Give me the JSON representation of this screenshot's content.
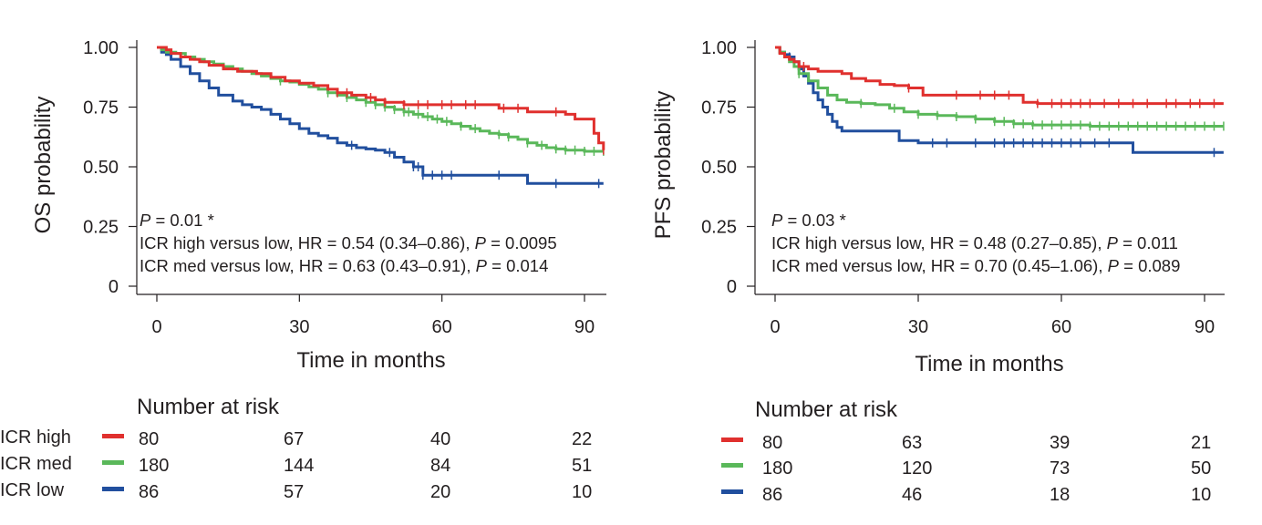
{
  "chart_data": [
    {
      "type": "line",
      "subtype": "kaplan-meier",
      "ylabel": "OS probability",
      "xlabel": "Time in months",
      "xlim": [
        -8,
        95
      ],
      "ylim": [
        0,
        1.05
      ],
      "xticks": [
        "0",
        "30",
        "60",
        "90"
      ],
      "xtick_values": [
        0,
        30,
        60,
        90
      ],
      "yticks": [
        "0",
        "0.25",
        "0.50",
        "0.75",
        "1.00"
      ],
      "ytick_values": [
        0,
        0.25,
        0.5,
        0.75,
        1.0
      ],
      "annotation": {
        "p_label": "P",
        "p_text": " = 0.01 *",
        "lines": [
          {
            "pre": "ICR high versus low, HR = 0.54 (0.34–0.86), ",
            "p": "P",
            "post": " = 0.0095"
          },
          {
            "pre": "ICR med versus low,  HR = 0.63 (0.43–0.91), ",
            "p": "P",
            "post": " = 0.014"
          }
        ]
      },
      "series": [
        {
          "name": "ICR high",
          "color": "#e0302e",
          "x": [
            0,
            2,
            3,
            5,
            7,
            9,
            11,
            14,
            17,
            21,
            24,
            27,
            30,
            33,
            36,
            38,
            41,
            44,
            46,
            48,
            52,
            56,
            60,
            64,
            68,
            72,
            75,
            78,
            80,
            84,
            86,
            88,
            90,
            92,
            93,
            94
          ],
          "y": [
            1.0,
            0.99,
            0.975,
            0.96,
            0.95,
            0.94,
            0.925,
            0.91,
            0.9,
            0.89,
            0.875,
            0.86,
            0.85,
            0.84,
            0.825,
            0.81,
            0.8,
            0.79,
            0.78,
            0.77,
            0.76,
            0.76,
            0.76,
            0.76,
            0.76,
            0.745,
            0.745,
            0.73,
            0.73,
            0.73,
            0.72,
            0.7,
            0.7,
            0.64,
            0.6,
            0.57
          ],
          "censor": [
            38,
            40,
            45,
            48,
            52,
            55,
            57,
            60,
            62,
            65,
            67,
            73,
            76,
            84,
            94
          ]
        },
        {
          "name": "ICR med",
          "color": "#5ab85a",
          "x": [
            0,
            1,
            2,
            4,
            6,
            8,
            10,
            12,
            14,
            16,
            18,
            20,
            22,
            24,
            26,
            28,
            30,
            32,
            34,
            36,
            38,
            40,
            42,
            44,
            46,
            48,
            50,
            52,
            54,
            56,
            58,
            60,
            62,
            64,
            66,
            68,
            70,
            72,
            74,
            76,
            78,
            80,
            82,
            84,
            86,
            88,
            90,
            92,
            94
          ],
          "y": [
            1.0,
            0.99,
            0.98,
            0.975,
            0.96,
            0.95,
            0.94,
            0.93,
            0.92,
            0.91,
            0.9,
            0.89,
            0.88,
            0.87,
            0.86,
            0.855,
            0.845,
            0.835,
            0.825,
            0.81,
            0.8,
            0.79,
            0.78,
            0.77,
            0.76,
            0.75,
            0.74,
            0.73,
            0.72,
            0.71,
            0.7,
            0.69,
            0.68,
            0.67,
            0.66,
            0.65,
            0.64,
            0.635,
            0.625,
            0.615,
            0.6,
            0.59,
            0.58,
            0.575,
            0.57,
            0.57,
            0.565,
            0.565,
            0.565
          ],
          "censor": [
            26,
            36,
            40,
            44,
            46,
            48,
            50,
            52,
            53,
            55,
            57,
            59,
            61,
            64,
            67,
            72,
            74,
            78,
            81,
            84,
            86,
            88,
            90,
            92,
            94
          ]
        },
        {
          "name": "ICR low",
          "color": "#214f9e",
          "x": [
            0,
            1,
            2,
            3,
            5,
            7,
            9,
            11,
            13,
            16,
            18,
            20,
            22,
            24,
            26,
            28,
            30,
            32,
            34,
            36,
            38,
            40,
            42,
            44,
            46,
            48,
            50,
            52,
            54,
            56,
            60,
            62,
            66,
            70,
            72,
            74,
            76,
            78,
            80,
            85,
            90,
            94
          ],
          "y": [
            1.0,
            0.98,
            0.97,
            0.95,
            0.92,
            0.89,
            0.86,
            0.83,
            0.8,
            0.775,
            0.76,
            0.75,
            0.74,
            0.72,
            0.7,
            0.68,
            0.66,
            0.64,
            0.63,
            0.62,
            0.6,
            0.59,
            0.58,
            0.575,
            0.57,
            0.56,
            0.54,
            0.52,
            0.5,
            0.465,
            0.465,
            0.465,
            0.465,
            0.465,
            0.465,
            0.465,
            0.465,
            0.43,
            0.43,
            0.43,
            0.43,
            0.43
          ],
          "censor": [
            41,
            49,
            54,
            55,
            56,
            58,
            60,
            62,
            72,
            84,
            93
          ]
        }
      ],
      "risk_table": {
        "title": "Number at risk",
        "rows": [
          {
            "label": "ICR high",
            "color": "#e0302e",
            "values": [
              "80",
              "67",
              "40",
              "22"
            ]
          },
          {
            "label": "ICR med",
            "color": "#5ab85a",
            "values": [
              "180",
              "144",
              "84",
              "51"
            ]
          },
          {
            "label": "ICR low",
            "color": "#214f9e",
            "values": [
              "86",
              "57",
              "20",
              "10"
            ]
          }
        ]
      }
    },
    {
      "type": "line",
      "subtype": "kaplan-meier",
      "ylabel": "PFS probability",
      "xlabel": "Time in months",
      "xlim": [
        -4,
        95
      ],
      "ylim": [
        0,
        1.05
      ],
      "xticks": [
        "0",
        "30",
        "60",
        "90"
      ],
      "xtick_values": [
        0,
        30,
        60,
        90
      ],
      "yticks": [
        "0",
        "0.25",
        "0.50",
        "0.75",
        "1.00"
      ],
      "ytick_values": [
        0,
        0.25,
        0.5,
        0.75,
        1.0
      ],
      "annotation": {
        "p_label": "P",
        "p_text": " = 0.03 *",
        "lines": [
          {
            "pre": "ICR high versus low, HR = 0.48 (0.27–0.85), ",
            "p": "P",
            "post": " = 0.011"
          },
          {
            "pre": "ICR med versus low,  HR = 0.70 (0.45–1.06), ",
            "p": "P",
            "post": " = 0.089"
          }
        ]
      },
      "series": [
        {
          "name": "ICR high",
          "color": "#e0302e",
          "x": [
            0,
            1,
            2,
            3,
            4,
            5,
            7,
            9,
            11,
            14,
            16,
            19,
            22,
            25,
            28,
            31,
            34,
            37,
            40,
            44,
            48,
            52,
            55,
            60,
            66,
            72,
            80,
            88,
            94
          ],
          "y": [
            1.0,
            0.975,
            0.96,
            0.95,
            0.94,
            0.92,
            0.91,
            0.9,
            0.9,
            0.89,
            0.87,
            0.86,
            0.845,
            0.84,
            0.83,
            0.8,
            0.8,
            0.8,
            0.8,
            0.8,
            0.8,
            0.77,
            0.765,
            0.765,
            0.765,
            0.765,
            0.765,
            0.765,
            0.765
          ],
          "censor": [
            6,
            28,
            38,
            43,
            46,
            49,
            55,
            58,
            60,
            62,
            64,
            66,
            69,
            72,
            75,
            78,
            82,
            84,
            87,
            89,
            92
          ]
        },
        {
          "name": "ICR med",
          "color": "#5ab85a",
          "x": [
            0,
            1,
            2,
            3,
            4,
            5,
            7,
            9,
            11,
            13,
            15,
            18,
            21,
            24,
            27,
            30,
            34,
            38,
            42,
            46,
            50,
            54,
            60,
            66,
            72,
            80,
            88,
            94
          ],
          "y": [
            1.0,
            0.98,
            0.96,
            0.94,
            0.92,
            0.89,
            0.86,
            0.83,
            0.8,
            0.78,
            0.77,
            0.765,
            0.76,
            0.745,
            0.73,
            0.72,
            0.715,
            0.71,
            0.7,
            0.69,
            0.68,
            0.675,
            0.675,
            0.67,
            0.67,
            0.67,
            0.67,
            0.67
          ],
          "censor": [
            5,
            18,
            25,
            30,
            34,
            38,
            42,
            46,
            48,
            50,
            52,
            54,
            56,
            58,
            60,
            62,
            64,
            66,
            68,
            70,
            72,
            74,
            76,
            78,
            80,
            82,
            84,
            86,
            88,
            90,
            92,
            94
          ]
        },
        {
          "name": "ICR low",
          "color": "#214f9e",
          "x": [
            0,
            1,
            2,
            3,
            4,
            5,
            6,
            7,
            8,
            9,
            10,
            11,
            12,
            13,
            14,
            18,
            22,
            26,
            30,
            40,
            50,
            60,
            70,
            75,
            80,
            94
          ],
          "y": [
            1.0,
            0.98,
            0.97,
            0.96,
            0.94,
            0.91,
            0.88,
            0.85,
            0.81,
            0.78,
            0.75,
            0.72,
            0.69,
            0.665,
            0.65,
            0.65,
            0.65,
            0.61,
            0.6,
            0.6,
            0.6,
            0.6,
            0.6,
            0.56,
            0.56,
            0.56
          ],
          "censor": [
            3,
            33,
            36,
            42,
            46,
            48,
            50,
            52,
            54,
            56,
            58,
            60,
            62,
            64,
            67,
            70,
            92
          ]
        }
      ],
      "risk_table": {
        "title": "Number at risk",
        "rows": [
          {
            "label": "",
            "color": "#e0302e",
            "values": [
              "80",
              "63",
              "39",
              "21"
            ]
          },
          {
            "label": "",
            "color": "#5ab85a",
            "values": [
              "180",
              "120",
              "73",
              "50"
            ]
          },
          {
            "label": "",
            "color": "#214f9e",
            "values": [
              "86",
              "46",
              "18",
              "10"
            ]
          }
        ]
      }
    }
  ]
}
